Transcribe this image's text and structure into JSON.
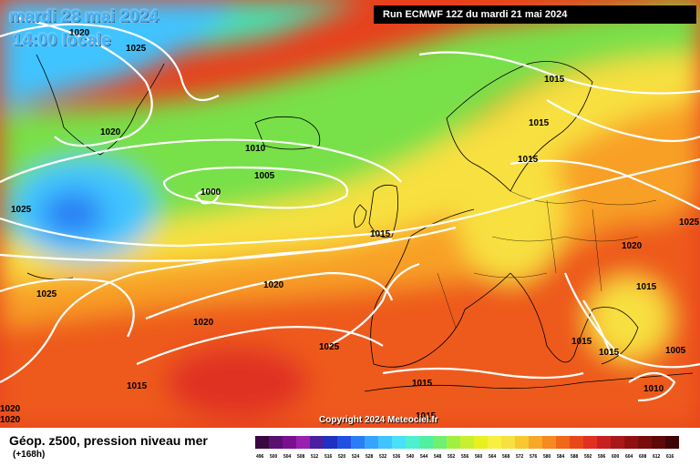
{
  "header": {
    "date": "mardi 28 mai 2024",
    "time": "14:00 locale",
    "run": "Run ECMWF 12Z du mardi 21 mai 2024"
  },
  "footer": {
    "parameter": "Géop. z500, pression niveau mer",
    "lead": "(+168h)",
    "copyright": "Copyright 2024 Meteociel.fr"
  },
  "scale": {
    "labels": [
      "496",
      "500",
      "504",
      "508",
      "512",
      "516",
      "520",
      "524",
      "528",
      "532",
      "536",
      "540",
      "544",
      "548",
      "552",
      "556",
      "560",
      "564",
      "568",
      "572",
      "576",
      "580",
      "584",
      "588",
      "592",
      "596",
      "600",
      "604",
      "608",
      "612",
      "616"
    ],
    "colors": [
      "#3a0840",
      "#5a1070",
      "#7a1090",
      "#9a20b0",
      "#4a20a0",
      "#2030c0",
      "#2050e0",
      "#2a7ef5",
      "#35a4ff",
      "#40c4ff",
      "#49e0f8",
      "#4ef0d0",
      "#50f0a0",
      "#70f070",
      "#a0f040",
      "#c8f030",
      "#e8f020",
      "#f8f040",
      "#f8e040",
      "#f8c830",
      "#f8a828",
      "#f88820",
      "#f06818",
      "#e84818",
      "#e03020",
      "#c82020",
      "#a81818",
      "#901010",
      "#780c0c",
      "#600808",
      "#400404"
    ]
  },
  "isobars": [
    {
      "text": "1020",
      "key": "tl-1020"
    },
    {
      "text": "1025",
      "key": "tl-1025"
    },
    {
      "text": "1020",
      "key": "greenland-1020"
    },
    {
      "text": "1010",
      "key": "mid-1010"
    },
    {
      "text": "1005",
      "key": "mid-1005"
    },
    {
      "text": "1000",
      "key": "low-1000"
    },
    {
      "text": "1025",
      "key": "west-1025a"
    },
    {
      "text": "1025",
      "key": "west-1025b"
    },
    {
      "text": "1015",
      "key": "uk-1015"
    },
    {
      "text": "1020",
      "key": "atl-1020a"
    },
    {
      "text": "1020",
      "key": "atl-1020b"
    },
    {
      "text": "1025",
      "key": "azores-1025"
    },
    {
      "text": "1015",
      "key": "sw-1015"
    },
    {
      "text": "1015",
      "key": "nordic-1015a"
    },
    {
      "text": "1015",
      "key": "nordic-1015b"
    },
    {
      "text": "1015",
      "key": "nordic-1015c"
    },
    {
      "text": "1020",
      "key": "russia-1020"
    },
    {
      "text": "1025",
      "key": "east-1025"
    },
    {
      "text": "1015",
      "key": "balkan-1015"
    },
    {
      "text": "1015",
      "key": "greece-1015a"
    },
    {
      "text": "1015",
      "key": "greece-1015b"
    },
    {
      "text": "1005",
      "key": "turkey-1005"
    },
    {
      "text": "1010",
      "key": "med-1010"
    },
    {
      "text": "1015",
      "key": "iberia-1015"
    },
    {
      "text": "1015",
      "key": "nafrica-1015"
    },
    {
      "text": "1020",
      "key": "bl-1020"
    },
    {
      "text": "1020",
      "key": "bl-1020b"
    }
  ]
}
